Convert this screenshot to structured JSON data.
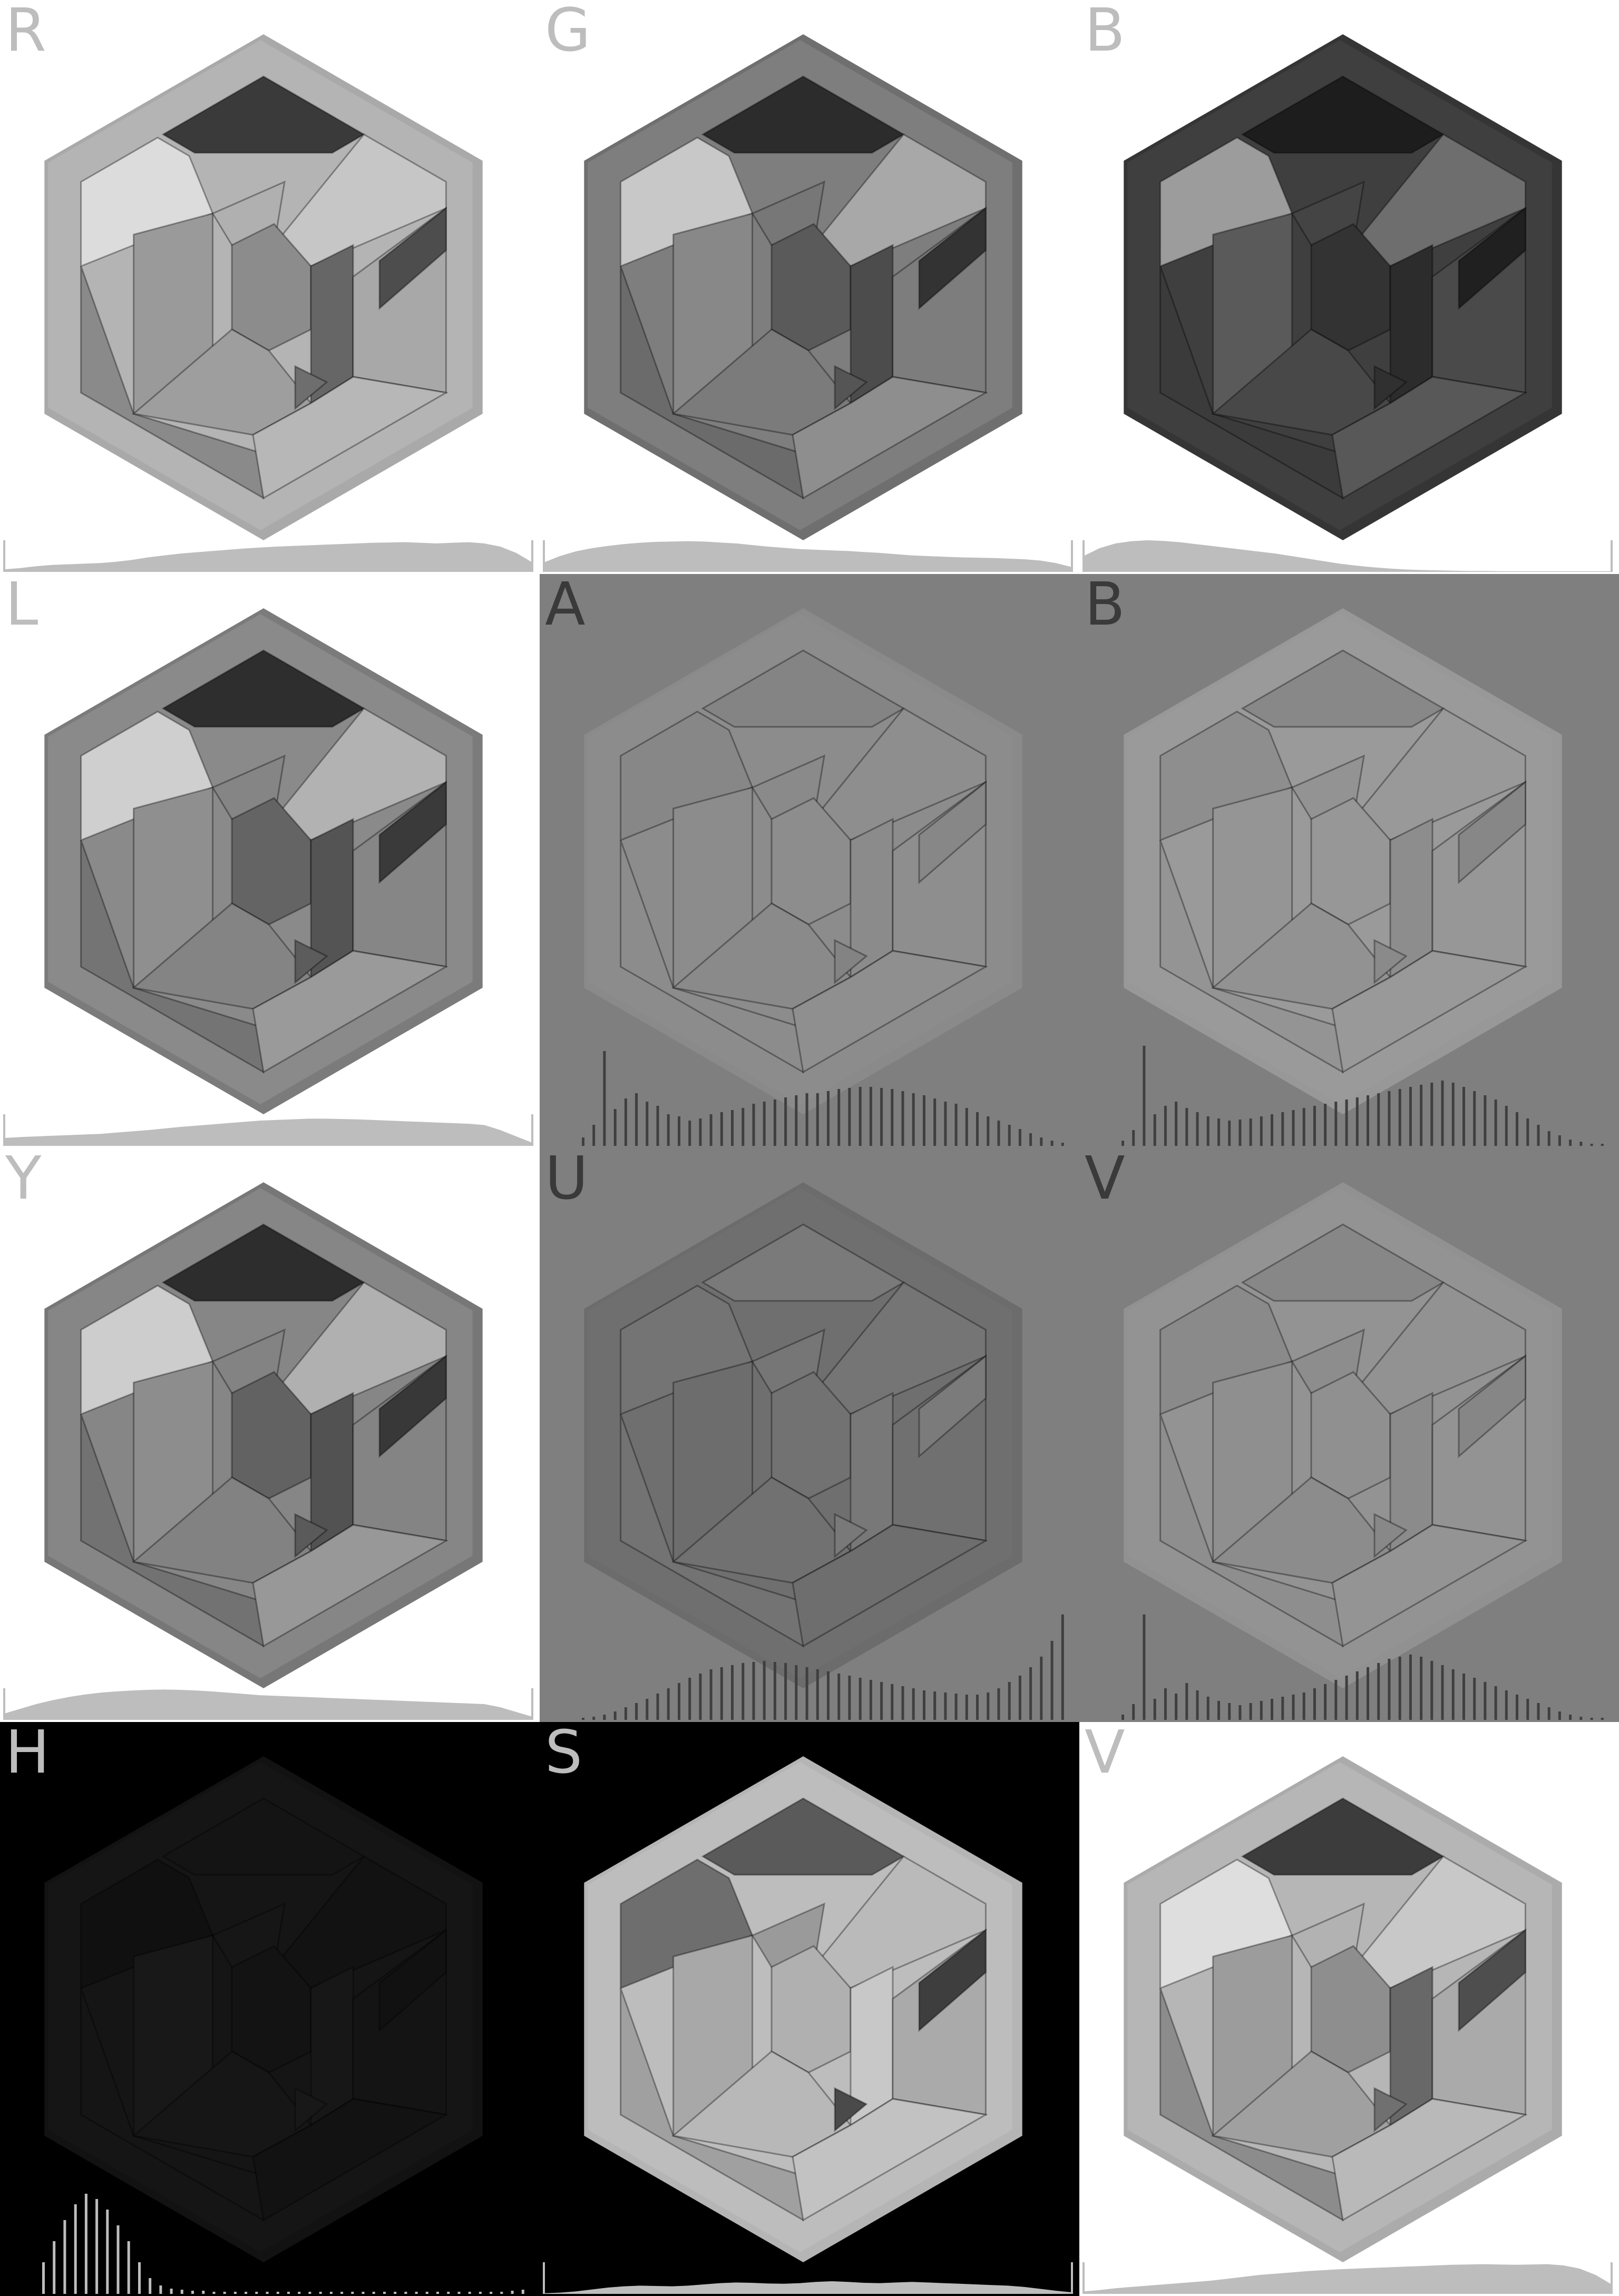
{
  "title": "",
  "panels": [
    {
      "id": "r",
      "label": "R",
      "bg": "#ffffff",
      "label_color": "#bdbdbd",
      "frame": "#b4b4b4",
      "outer": "#a9a9a9",
      "pieces": [
        "#dcdcdc",
        "#3a3a3a",
        "#9a9a9a",
        "#c6c6c6",
        "#b0b0b0",
        "#8c8c8c",
        "#666666",
        "#a8a8a8",
        "#4d4d4d",
        "#8a8a8a",
        "#9e9e9e",
        "#b7b7b7",
        "#6e6e6e"
      ],
      "histogram": {
        "style": "fill",
        "color": "#bdbdbd",
        "values": [
          0.08,
          0.12,
          0.18,
          0.22,
          0.24,
          0.26,
          0.28,
          0.32,
          0.38,
          0.46,
          0.52,
          0.58,
          0.62,
          0.66,
          0.7,
          0.74,
          0.77,
          0.8,
          0.82,
          0.84,
          0.86,
          0.88,
          0.9,
          0.92,
          0.93,
          0.94,
          0.92,
          0.9,
          0.92,
          0.94,
          0.9,
          0.8,
          0.6,
          0.3
        ]
      }
    },
    {
      "id": "g",
      "label": "G",
      "bg": "#ffffff",
      "label_color": "#bdbdbd",
      "frame": "#7e7e7e",
      "outer": "#6f6f6f",
      "pieces": [
        "#c8c8c8",
        "#2c2c2c",
        "#888888",
        "#a8a8a8",
        "#777777",
        "#5a5a5a",
        "#4c4c4c",
        "#7d7d7d",
        "#333333",
        "#6b6b6b",
        "#7b7b7b",
        "#8e8e8e",
        "#555555"
      ],
      "histogram": {
        "style": "fill",
        "color": "#bdbdbd",
        "values": [
          0.3,
          0.5,
          0.65,
          0.75,
          0.82,
          0.88,
          0.92,
          0.95,
          0.96,
          0.97,
          0.96,
          0.93,
          0.9,
          0.85,
          0.8,
          0.76,
          0.72,
          0.7,
          0.68,
          0.66,
          0.63,
          0.6,
          0.56,
          0.52,
          0.5,
          0.48,
          0.46,
          0.45,
          0.44,
          0.42,
          0.4,
          0.36,
          0.28,
          0.15
        ]
      }
    },
    {
      "id": "b1",
      "label": "B",
      "bg": "#ffffff",
      "label_color": "#bdbdbd",
      "frame": "#3f3f3f",
      "outer": "#353535",
      "pieces": [
        "#9c9c9c",
        "#1d1d1d",
        "#5a5a5a",
        "#6e6e6e",
        "#444444",
        "#333333",
        "#2c2c2c",
        "#4a4a4a",
        "#202020",
        "#3b3b3b",
        "#484848",
        "#585858",
        "#303030"
      ],
      "histogram": {
        "style": "fill",
        "color": "#bdbdbd",
        "values": [
          0.5,
          0.75,
          0.9,
          0.97,
          1.0,
          0.98,
          0.94,
          0.88,
          0.82,
          0.76,
          0.7,
          0.64,
          0.58,
          0.5,
          0.42,
          0.34,
          0.26,
          0.2,
          0.15,
          0.11,
          0.08,
          0.06,
          0.05,
          0.04,
          0.03,
          0.03,
          0.02,
          0.02,
          0.02,
          0.02,
          0.02,
          0.02,
          0.02,
          0.02
        ]
      }
    },
    {
      "id": "l",
      "label": "L",
      "bg": "#ffffff",
      "label_color": "#bdbdbd",
      "frame": "#8a8a8a",
      "outer": "#7b7b7b",
      "pieces": [
        "#cfcfcf",
        "#2e2e2e",
        "#8f8f8f",
        "#b2b2b2",
        "#858585",
        "#646464",
        "#545454",
        "#868686",
        "#3a3a3a",
        "#747474",
        "#848484",
        "#9a9a9a",
        "#5c5c5c"
      ],
      "histogram": {
        "style": "fill",
        "color": "#bdbdbd",
        "values": [
          0.25,
          0.28,
          0.3,
          0.32,
          0.34,
          0.36,
          0.38,
          0.42,
          0.46,
          0.5,
          0.55,
          0.6,
          0.64,
          0.68,
          0.72,
          0.76,
          0.8,
          0.82,
          0.84,
          0.86,
          0.86,
          0.85,
          0.84,
          0.82,
          0.8,
          0.78,
          0.76,
          0.74,
          0.72,
          0.7,
          0.66,
          0.5,
          0.3,
          0.1
        ]
      }
    },
    {
      "id": "a",
      "label": "A",
      "bg": "#7f7f7f",
      "label_color": "#3a3a3a",
      "frame": "#8c8c8c",
      "outer": "#8a8a8a",
      "pieces": [
        "#878787",
        "#848484",
        "#8c8c8c",
        "#8e8e8e",
        "#8a8a8a",
        "#8d8d8d",
        "#8b8b8b",
        "#8e8e8e",
        "#878787",
        "#8c8c8c",
        "#8a8a8a",
        "#8f8f8f",
        "#838383"
      ],
      "histogram": {
        "style": "bars",
        "color": "#3f3f3f",
        "values": [
          0.08,
          0.2,
          0.9,
          0.35,
          0.45,
          0.5,
          0.42,
          0.38,
          0.3,
          0.28,
          0.24,
          0.26,
          0.3,
          0.32,
          0.34,
          0.36,
          0.4,
          0.42,
          0.44,
          0.46,
          0.48,
          0.5,
          0.5,
          0.52,
          0.54,
          0.55,
          0.56,
          0.56,
          0.55,
          0.54,
          0.52,
          0.5,
          0.48,
          0.45,
          0.42,
          0.4,
          0.36,
          0.32,
          0.28,
          0.24,
          0.2,
          0.16,
          0.12,
          0.08,
          0.05,
          0.03
        ]
      }
    },
    {
      "id": "b2",
      "label": "B",
      "bg": "#7f7f7f",
      "label_color": "#3a3a3a",
      "frame": "#9a9a9a",
      "outer": "#989898",
      "pieces": [
        "#8e8e8e",
        "#888888",
        "#959595",
        "#999999",
        "#939393",
        "#979797",
        "#8d8d8d",
        "#979797",
        "#878787",
        "#949494",
        "#929292",
        "#999999",
        "#8a8a8a"
      ],
      "histogram": {
        "style": "bars",
        "color": "#3f3f3f",
        "values": [
          0.05,
          0.15,
          0.95,
          0.3,
          0.38,
          0.42,
          0.36,
          0.32,
          0.28,
          0.26,
          0.24,
          0.25,
          0.26,
          0.28,
          0.3,
          0.32,
          0.34,
          0.36,
          0.38,
          0.4,
          0.42,
          0.44,
          0.46,
          0.48,
          0.5,
          0.52,
          0.54,
          0.56,
          0.58,
          0.6,
          0.62,
          0.6,
          0.56,
          0.52,
          0.48,
          0.44,
          0.38,
          0.32,
          0.26,
          0.2,
          0.14,
          0.1,
          0.06,
          0.04,
          0.02,
          0.02
        ]
      }
    },
    {
      "id": "y",
      "label": "Y",
      "bg": "#ffffff",
      "label_color": "#bdbdbd",
      "frame": "#868686",
      "outer": "#777777",
      "pieces": [
        "#cdcdcd",
        "#2d2d2d",
        "#8d8d8d",
        "#b0b0b0",
        "#838383",
        "#626262",
        "#525252",
        "#848484",
        "#383838",
        "#727272",
        "#828282",
        "#989898",
        "#5a5a5a"
      ],
      "histogram": {
        "style": "fill",
        "color": "#bdbdbd",
        "values": [
          0.2,
          0.35,
          0.5,
          0.62,
          0.72,
          0.8,
          0.86,
          0.9,
          0.93,
          0.95,
          0.96,
          0.95,
          0.93,
          0.9,
          0.86,
          0.82,
          0.78,
          0.76,
          0.74,
          0.72,
          0.7,
          0.68,
          0.66,
          0.64,
          0.62,
          0.6,
          0.58,
          0.56,
          0.54,
          0.52,
          0.5,
          0.4,
          0.25,
          0.1
        ]
      }
    },
    {
      "id": "u",
      "label": "U",
      "bg": "#7f7f7f",
      "label_color": "#3a3a3a",
      "frame": "#6f6f6f",
      "outer": "#6c6c6c",
      "pieces": [
        "#747474",
        "#7a7a7a",
        "#6d6d6d",
        "#757575",
        "#767676",
        "#727272",
        "#787878",
        "#707070",
        "#7b7b7b",
        "#737373",
        "#717171",
        "#6e6e6e",
        "#797979"
      ],
      "histogram": {
        "style": "bars",
        "color": "#3f3f3f",
        "values": [
          0.02,
          0.03,
          0.05,
          0.08,
          0.12,
          0.16,
          0.2,
          0.25,
          0.3,
          0.35,
          0.4,
          0.44,
          0.48,
          0.5,
          0.52,
          0.54,
          0.55,
          0.56,
          0.55,
          0.54,
          0.52,
          0.5,
          0.48,
          0.46,
          0.44,
          0.42,
          0.4,
          0.38,
          0.36,
          0.34,
          0.32,
          0.3,
          0.28,
          0.27,
          0.26,
          0.25,
          0.24,
          0.24,
          0.26,
          0.3,
          0.36,
          0.42,
          0.5,
          0.6,
          0.75,
          1.0
        ]
      }
    },
    {
      "id": "v1",
      "label": "V",
      "bg": "#7f7f7f",
      "label_color": "#3a3a3a",
      "frame": "#939393",
      "outer": "#919191",
      "pieces": [
        "#8a8a8a",
        "#878787",
        "#8f8f8f",
        "#929292",
        "#8d8d8d",
        "#909090",
        "#8b8b8b",
        "#939393",
        "#868686",
        "#8e8e8e",
        "#8c8c8c",
        "#949494",
        "#888888"
      ],
      "histogram": {
        "style": "bars",
        "color": "#3f3f3f",
        "values": [
          0.05,
          0.15,
          1.0,
          0.2,
          0.3,
          0.25,
          0.35,
          0.28,
          0.22,
          0.18,
          0.16,
          0.14,
          0.16,
          0.18,
          0.2,
          0.22,
          0.24,
          0.26,
          0.3,
          0.34,
          0.38,
          0.42,
          0.46,
          0.5,
          0.54,
          0.58,
          0.6,
          0.62,
          0.6,
          0.56,
          0.52,
          0.48,
          0.44,
          0.4,
          0.36,
          0.32,
          0.28,
          0.24,
          0.2,
          0.16,
          0.12,
          0.08,
          0.05,
          0.03,
          0.02,
          0.02
        ]
      }
    },
    {
      "id": "h",
      "label": "H",
      "bg": "#000000",
      "label_color": "#bdbdbd",
      "frame": "#151515",
      "outer": "#121212",
      "pieces": [
        "#101010",
        "#141414",
        "#181818",
        "#121212",
        "#161616",
        "#131313",
        "#171717",
        "#141414",
        "#111111",
        "#151515",
        "#161616",
        "#121212",
        "#181818"
      ],
      "histogram": {
        "style": "bars",
        "color": "#bdbdbd",
        "values": [
          0.3,
          0.5,
          0.7,
          0.85,
          0.95,
          0.9,
          0.8,
          0.65,
          0.5,
          0.3,
          0.15,
          0.08,
          0.05,
          0.04,
          0.03,
          0.03,
          0.02,
          0.02,
          0.02,
          0.02,
          0.02,
          0.02,
          0.02,
          0.02,
          0.02,
          0.02,
          0.02,
          0.02,
          0.02,
          0.02,
          0.02,
          0.02,
          0.02,
          0.02,
          0.02,
          0.02,
          0.02,
          0.02,
          0.02,
          0.02,
          0.02,
          0.02,
          0.02,
          0.02,
          0.03,
          0.04
        ]
      }
    },
    {
      "id": "s",
      "label": "S",
      "bg": "#000000",
      "label_color": "#bdbdbd",
      "frame": "#bdbdbd",
      "outer": "#b5b5b5",
      "pieces": [
        "#6e6e6e",
        "#5a5a5a",
        "#a8a8a8",
        "#bababa",
        "#9a9a9a",
        "#b0b0b0",
        "#c8c8c8",
        "#aaaaaa",
        "#3e3e3e",
        "#a0a0a0",
        "#b8b8b8",
        "#c2c2c2",
        "#4a4a4a"
      ],
      "histogram": {
        "style": "fill",
        "color": "#bdbdbd",
        "values": [
          0.02,
          0.04,
          0.08,
          0.14,
          0.2,
          0.24,
          0.26,
          0.25,
          0.24,
          0.26,
          0.3,
          0.34,
          0.36,
          0.35,
          0.33,
          0.32,
          0.34,
          0.38,
          0.4,
          0.38,
          0.35,
          0.34,
          0.36,
          0.38,
          0.36,
          0.34,
          0.32,
          0.3,
          0.28,
          0.26,
          0.22,
          0.16,
          0.1,
          0.05
        ]
      }
    },
    {
      "id": "v2",
      "label": "V",
      "bg": "#ffffff",
      "label_color": "#bdbdbd",
      "frame": "#b6b6b6",
      "outer": "#ababab",
      "pieces": [
        "#dedede",
        "#3c3c3c",
        "#9c9c9c",
        "#c8c8c8",
        "#b2b2b2",
        "#8e8e8e",
        "#686868",
        "#aaaaaa",
        "#4e4e4e",
        "#8c8c8c",
        "#a0a0a0",
        "#b9b9b9",
        "#707070"
      ],
      "histogram": {
        "style": "fill",
        "color": "#bdbdbd",
        "values": [
          0.08,
          0.12,
          0.18,
          0.22,
          0.26,
          0.3,
          0.34,
          0.38,
          0.42,
          0.48,
          0.54,
          0.6,
          0.64,
          0.68,
          0.72,
          0.75,
          0.78,
          0.8,
          0.82,
          0.84,
          0.86,
          0.88,
          0.9,
          0.92,
          0.93,
          0.94,
          0.93,
          0.92,
          0.93,
          0.94,
          0.9,
          0.8,
          0.6,
          0.3
        ]
      }
    }
  ]
}
